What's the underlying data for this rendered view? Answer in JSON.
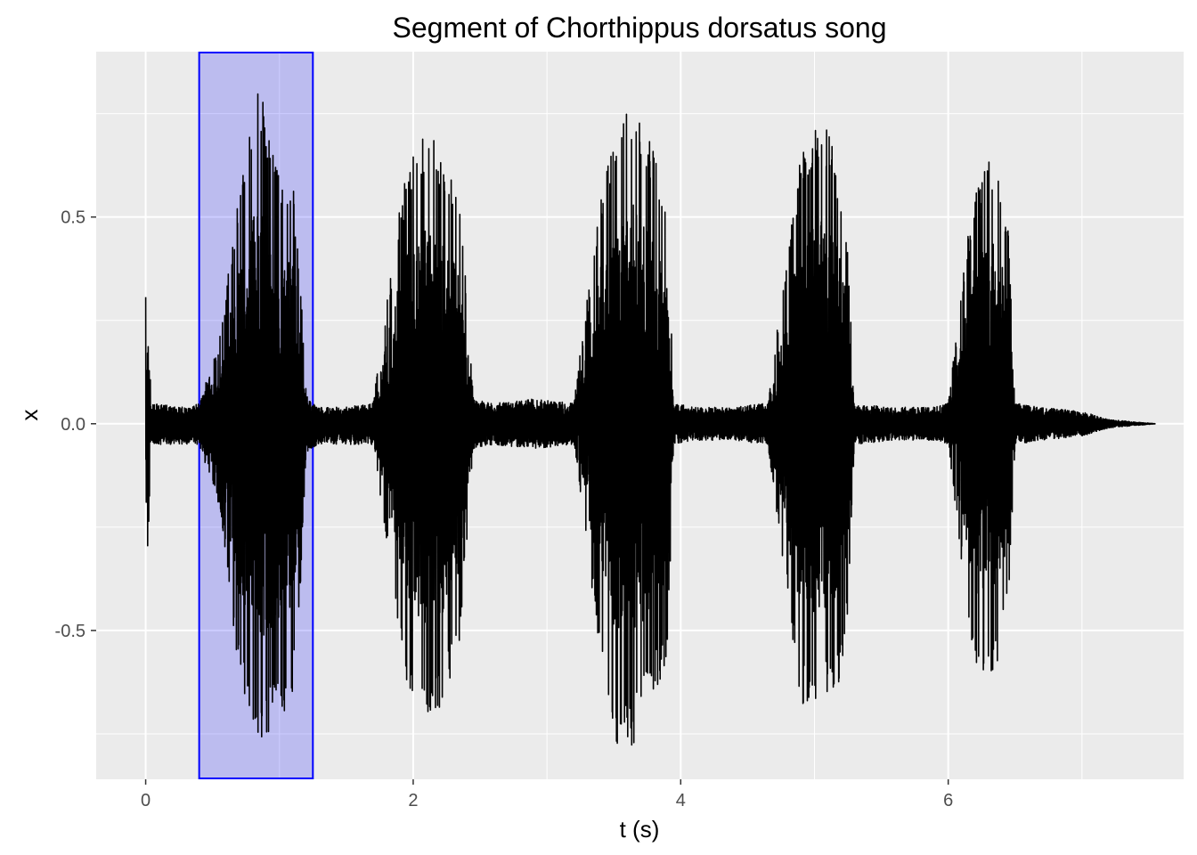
{
  "chart_data": {
    "type": "line",
    "title": "Segment of Chorthippus dorsatus song",
    "xlabel": "t (s)",
    "ylabel": "x",
    "xlim": [
      -0.37,
      7.76
    ],
    "ylim": [
      -0.86,
      0.9
    ],
    "x_ticks": [
      0,
      2,
      4,
      6
    ],
    "x_tick_labels": [
      "0",
      "2",
      "4",
      "6"
    ],
    "y_ticks": [
      -0.5,
      0.0,
      0.5
    ],
    "y_tick_labels": [
      "-0.5",
      "0.0",
      "0.5"
    ],
    "grid": true,
    "colors": {
      "panel": "#ebebeb",
      "grid": "#ffffff",
      "line": "#000000",
      "highlight_fill": "#0000ff",
      "highlight_fill_opacity": 0.2,
      "highlight_stroke": "#0000ff"
    },
    "highlight": {
      "xmin": 0.4,
      "xmax": 1.25
    },
    "series": [
      {
        "envelope": {
          "t": [
            0.0,
            0.02,
            0.04,
            0.3,
            0.4,
            0.55,
            0.7,
            0.85,
            1.0,
            1.1,
            1.15,
            1.2,
            1.3,
            1.5,
            1.7,
            1.8,
            1.95,
            2.1,
            2.25,
            2.35,
            2.45,
            2.6,
            2.9,
            3.2,
            3.3,
            3.4,
            3.5,
            3.65,
            3.8,
            3.9,
            3.95,
            4.1,
            4.4,
            4.65,
            4.75,
            4.9,
            5.05,
            5.2,
            5.25,
            5.3,
            5.6,
            5.9,
            6.0,
            6.2,
            6.35,
            6.45,
            6.5,
            6.7,
            7.0,
            7.2,
            7.55
          ],
          "upper": [
            0.31,
            0.3,
            0.05,
            0.04,
            0.05,
            0.2,
            0.58,
            0.82,
            0.6,
            0.6,
            0.4,
            0.07,
            0.04,
            0.04,
            0.05,
            0.3,
            0.63,
            0.72,
            0.63,
            0.55,
            0.06,
            0.05,
            0.06,
            0.05,
            0.3,
            0.57,
            0.67,
            0.8,
            0.67,
            0.52,
            0.05,
            0.04,
            0.04,
            0.05,
            0.3,
            0.66,
            0.76,
            0.6,
            0.45,
            0.05,
            0.04,
            0.04,
            0.05,
            0.6,
            0.66,
            0.5,
            0.05,
            0.04,
            0.03,
            0.01,
            0.0
          ],
          "lower": [
            -0.37,
            -0.3,
            -0.05,
            -0.05,
            -0.05,
            -0.2,
            -0.62,
            -0.78,
            -0.72,
            -0.66,
            -0.45,
            -0.07,
            -0.05,
            -0.05,
            -0.05,
            -0.3,
            -0.63,
            -0.76,
            -0.66,
            -0.52,
            -0.06,
            -0.05,
            -0.06,
            -0.05,
            -0.3,
            -0.59,
            -0.78,
            -0.78,
            -0.65,
            -0.58,
            -0.05,
            -0.04,
            -0.04,
            -0.05,
            -0.3,
            -0.68,
            -0.68,
            -0.62,
            -0.45,
            -0.05,
            -0.04,
            -0.04,
            -0.05,
            -0.62,
            -0.6,
            -0.45,
            -0.05,
            -0.04,
            -0.03,
            -0.01,
            0.0
          ]
        }
      }
    ]
  }
}
